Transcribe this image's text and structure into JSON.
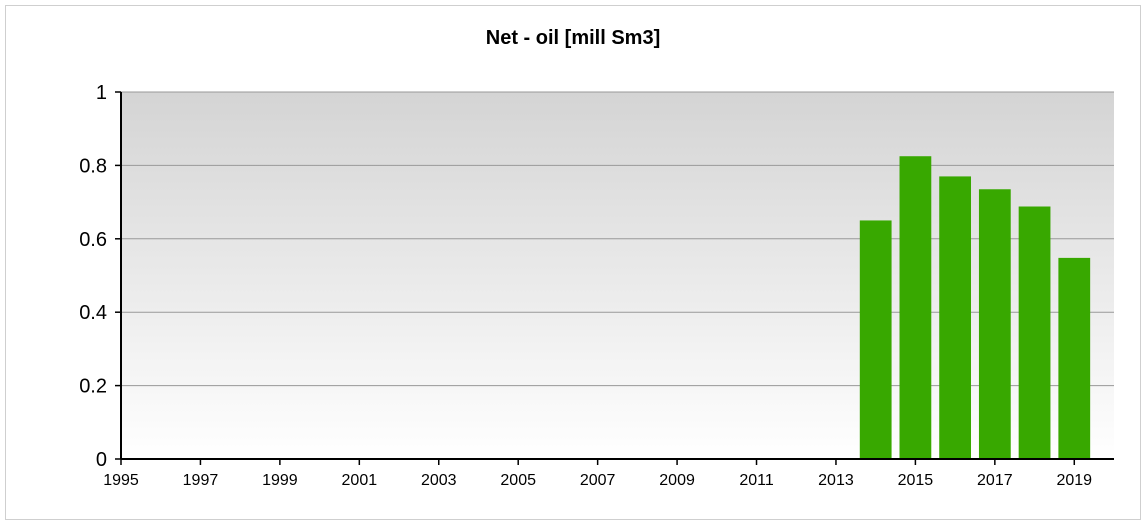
{
  "chart_data": {
    "type": "bar",
    "title": "Net - oil [mill Sm3]",
    "x": [
      2014,
      2015,
      2016,
      2017,
      2018,
      2019
    ],
    "values": [
      0.65,
      0.825,
      0.77,
      0.735,
      0.688,
      0.548
    ],
    "color": "#38a800",
    "xlim": [
      1995,
      2020
    ],
    "xticks": [
      1995,
      1997,
      1999,
      2001,
      2003,
      2005,
      2007,
      2009,
      2011,
      2013,
      2015,
      2017,
      2019
    ],
    "ylim": [
      0,
      1
    ],
    "yticks": [
      0,
      0.2,
      0.4,
      0.6,
      0.8,
      1
    ],
    "grid": true
  }
}
